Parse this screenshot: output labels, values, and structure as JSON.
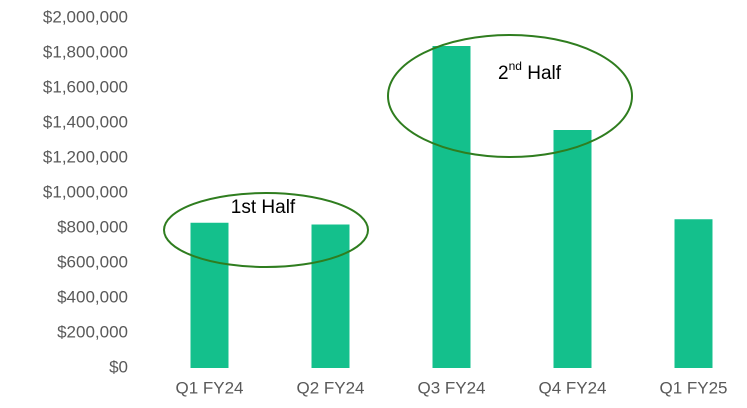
{
  "chart_data": {
    "type": "bar",
    "categories": [
      "Q1 FY24",
      "Q2 FY24",
      "Q3 FY24",
      "Q4 FY24",
      "Q1 FY25"
    ],
    "values": [
      830000,
      820000,
      1840000,
      1360000,
      850000
    ],
    "color": "#14c08c",
    "ylim": [
      0,
      2000000
    ],
    "yticks": [
      {
        "value": 0,
        "label": "$0"
      },
      {
        "value": 200000,
        "label": "$200,000"
      },
      {
        "value": 400000,
        "label": "$400,000"
      },
      {
        "value": 600000,
        "label": "$600,000"
      },
      {
        "value": 800000,
        "label": "$800,000"
      },
      {
        "value": 1000000,
        "label": "$1,000,000"
      },
      {
        "value": 1200000,
        "label": "$1,200,000"
      },
      {
        "value": 1400000,
        "label": "$1,400,000"
      },
      {
        "value": 1600000,
        "label": "$1,600,000"
      },
      {
        "value": 1800000,
        "label": "$1,800,000"
      },
      {
        "value": 2000000,
        "label": "$2,000,000"
      }
    ],
    "grid": false,
    "annotations": [
      {
        "base": "1st Half"
      },
      {
        "base": "2",
        "sup": "nd",
        "rest": " Half"
      }
    ]
  }
}
